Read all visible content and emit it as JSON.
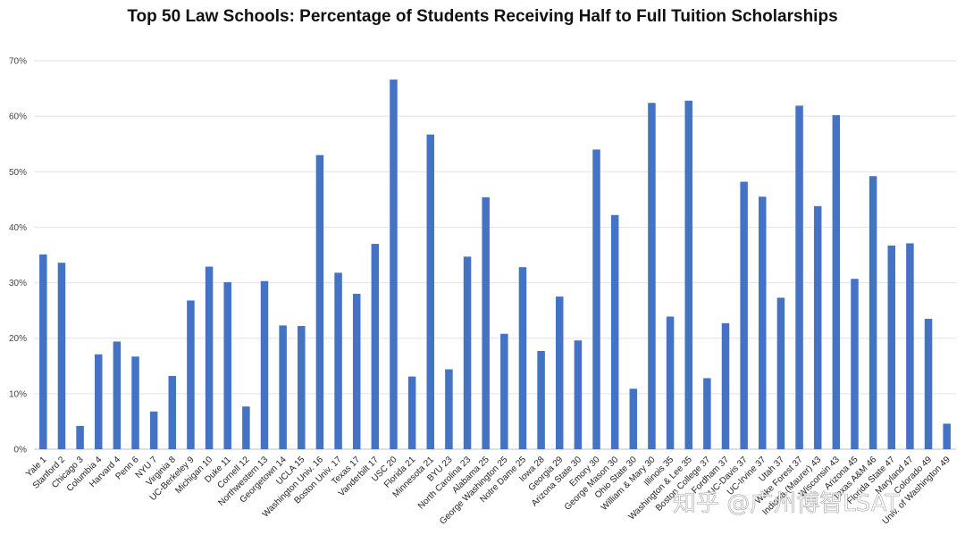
{
  "chart_data": {
    "type": "bar",
    "title": "Top 50 Law Schools: Percentage of Students Receiving Half to Full Tuition Scholarships",
    "xlabel": "",
    "ylabel": "",
    "ylim": [
      0,
      70
    ],
    "yticks": [
      "0%",
      "10%",
      "20%",
      "30%",
      "40%",
      "50%",
      "60%",
      "70%"
    ],
    "grid": true,
    "bar_color": "#4472C4",
    "categories": [
      "Yale 1",
      "Stanford 2",
      "Chicago 3",
      "Columbia 4",
      "Harvard 4",
      "Penn 6",
      "NYU 7",
      "Virginia 8",
      "UC-Berkeley 9",
      "Michigan 10",
      "Duke 11",
      "Cornell 12",
      "Northwestern 13",
      "Georgetown 14",
      "UCLA 15",
      "Washington Univ. 16",
      "Boston Univ. 17",
      "Texas 17",
      "Vanderbilt 17",
      "USC 20",
      "Florida 21",
      "Minnesota 21",
      "BYU 23",
      "North Carolina 23",
      "Alabama 25",
      "George Washington 25",
      "Notre Dame 25",
      "Iowa 28",
      "Georgia 29",
      "Arizona State 30",
      "Emory 30",
      "George Mason 30",
      "Ohio State 30",
      "William & Mary 30",
      "Illinois 35",
      "Washington & Lee 35",
      "Boston College 37",
      "Fordham 37",
      "UC-Davis 37",
      "UC-Irvine 37",
      "Utah 37",
      "Wake Forest 37",
      "Indiana (Maurer) 43",
      "Wisconsin 43",
      "Arizona 45",
      "Texas A&M 46",
      "Florida State 47",
      "Maryland 47",
      "Colorado 49",
      "Univ. of Washington 49"
    ],
    "values": [
      35.1,
      33.6,
      4.2,
      17.1,
      19.4,
      16.7,
      6.8,
      13.2,
      26.8,
      32.9,
      30.1,
      7.7,
      30.3,
      22.3,
      22.2,
      53.0,
      31.8,
      28.0,
      37.0,
      66.6,
      13.1,
      56.7,
      14.4,
      34.7,
      45.4,
      20.8,
      32.8,
      17.7,
      27.5,
      19.6,
      54.0,
      42.2,
      10.9,
      62.4,
      23.9,
      62.8,
      12.8,
      22.7,
      48.2,
      45.5,
      27.3,
      61.9,
      43.8,
      60.2,
      30.7,
      49.2,
      36.7,
      37.1,
      23.5,
      4.6
    ]
  },
  "watermark": "知乎 @广州博智LSAT"
}
